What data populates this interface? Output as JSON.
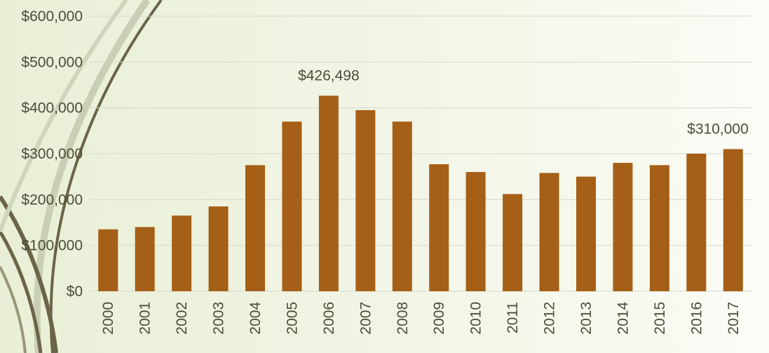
{
  "chart_data": {
    "type": "bar",
    "categories": [
      "2000",
      "2001",
      "2002",
      "2003",
      "2004",
      "2005",
      "2006",
      "2007",
      "2008",
      "2009",
      "2010",
      "2011",
      "2012",
      "2013",
      "2014",
      "2015",
      "2016",
      "2017"
    ],
    "values": [
      135000,
      140000,
      165000,
      185000,
      275000,
      370000,
      426498,
      395000,
      370000,
      277000,
      260000,
      212000,
      258000,
      250000,
      280000,
      275000,
      300000,
      310000
    ],
    "value_labels": [
      null,
      null,
      null,
      null,
      null,
      null,
      "$426,498",
      null,
      null,
      null,
      null,
      null,
      null,
      null,
      null,
      null,
      null,
      "$310,000"
    ],
    "color": "#a65f16",
    "ylim": [
      0,
      600000
    ],
    "yticks": [
      {
        "value": 0,
        "label": "$0"
      },
      {
        "value": 100000,
        "label": "$100,000"
      },
      {
        "value": 200000,
        "label": "$200,000"
      },
      {
        "value": 300000,
        "label": "$300,000"
      },
      {
        "value": 400000,
        "label": "$400,000"
      },
      {
        "value": 500000,
        "label": "$500,000"
      },
      {
        "value": 600000,
        "label": "$600,000"
      }
    ],
    "grid": true
  }
}
